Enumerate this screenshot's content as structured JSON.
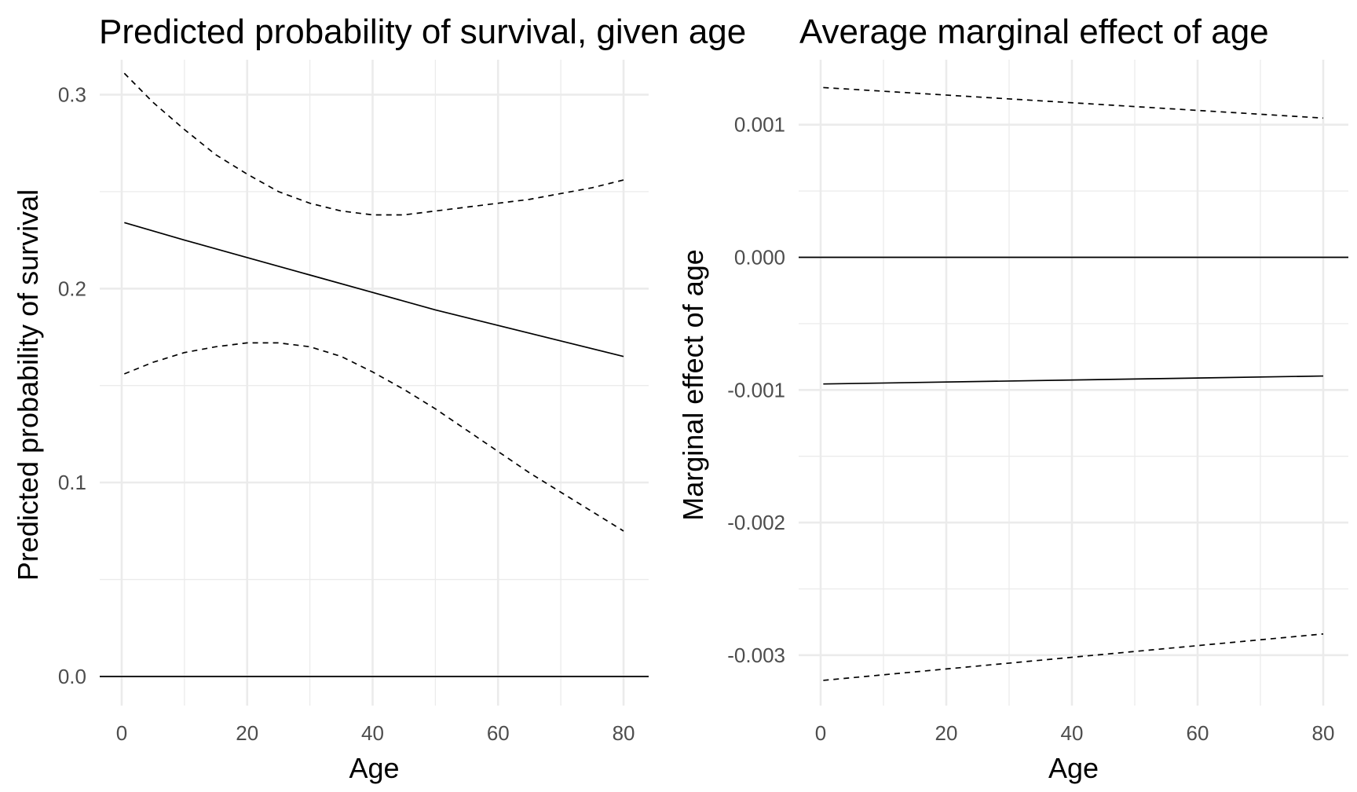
{
  "chart_data": [
    {
      "type": "line",
      "title": "Predicted probability of survival, given age",
      "xlabel": "Age",
      "ylabel": "Predicted probability of survival",
      "xlim": [
        -3.5,
        84
      ],
      "ylim": [
        -0.015,
        0.318
      ],
      "x_major_ticks": [
        0,
        20,
        40,
        60,
        80
      ],
      "x_minor_ticks": [
        10,
        30,
        50,
        70
      ],
      "x_tick_labels": [
        "0",
        "20",
        "40",
        "60",
        "80"
      ],
      "y_major_ticks": [
        0.0,
        0.1,
        0.2,
        0.3
      ],
      "y_minor_ticks": [
        0.05,
        0.15,
        0.25
      ],
      "y_tick_labels": [
        "0.0",
        "0.1",
        "0.2",
        "0.3"
      ],
      "hline": 0,
      "grid": true,
      "legend": "none",
      "series": [
        {
          "style": "solid",
          "x": [
            0.42,
            10,
            20,
            30,
            40,
            50,
            60,
            70,
            80
          ],
          "y": [
            0.234,
            0.225,
            0.216,
            0.207,
            0.198,
            0.189,
            0.181,
            0.173,
            0.165
          ]
        },
        {
          "style": "dashed",
          "x": [
            0.42,
            5,
            10,
            15,
            20,
            25,
            30,
            35,
            40,
            45,
            50,
            55,
            60,
            65,
            70,
            75,
            80
          ],
          "y": [
            0.311,
            0.296,
            0.282,
            0.269,
            0.259,
            0.25,
            0.244,
            0.24,
            0.238,
            0.238,
            0.24,
            0.242,
            0.244,
            0.246,
            0.249,
            0.252,
            0.256
          ]
        },
        {
          "style": "dashed",
          "x": [
            0.42,
            5,
            10,
            15,
            20,
            25,
            30,
            35,
            40,
            45,
            50,
            55,
            60,
            65,
            70,
            75,
            80
          ],
          "y": [
            0.156,
            0.162,
            0.167,
            0.17,
            0.172,
            0.172,
            0.17,
            0.165,
            0.157,
            0.148,
            0.138,
            0.127,
            0.116,
            0.105,
            0.095,
            0.085,
            0.075
          ]
        }
      ]
    },
    {
      "type": "line",
      "title": "Average marginal effect of age",
      "xlabel": "Age",
      "ylabel": "Marginal effect of age",
      "xlim": [
        -3.5,
        84
      ],
      "ylim": [
        -0.00338,
        0.00149
      ],
      "x_major_ticks": [
        0,
        20,
        40,
        60,
        80
      ],
      "x_minor_ticks": [
        10,
        30,
        50,
        70
      ],
      "x_tick_labels": [
        "0",
        "20",
        "40",
        "60",
        "80"
      ],
      "y_major_ticks": [
        -0.003,
        -0.002,
        -0.001,
        0.0,
        0.001
      ],
      "y_minor_ticks": [
        -0.0025,
        -0.0015,
        -0.0005,
        0.0005
      ],
      "y_tick_labels": [
        "-0.003",
        "-0.002",
        "-0.001",
        "0.000",
        "0.001"
      ],
      "hline": 0,
      "grid": true,
      "legend": "none",
      "series": [
        {
          "style": "solid",
          "x": [
            0.42,
            80
          ],
          "y": [
            -0.000955,
            -0.000895
          ]
        },
        {
          "style": "dashed",
          "x": [
            0.42,
            80
          ],
          "y": [
            0.00128,
            0.00105
          ]
        },
        {
          "style": "dashed",
          "x": [
            0.42,
            80
          ],
          "y": [
            -0.00319,
            -0.00284
          ]
        }
      ]
    }
  ]
}
